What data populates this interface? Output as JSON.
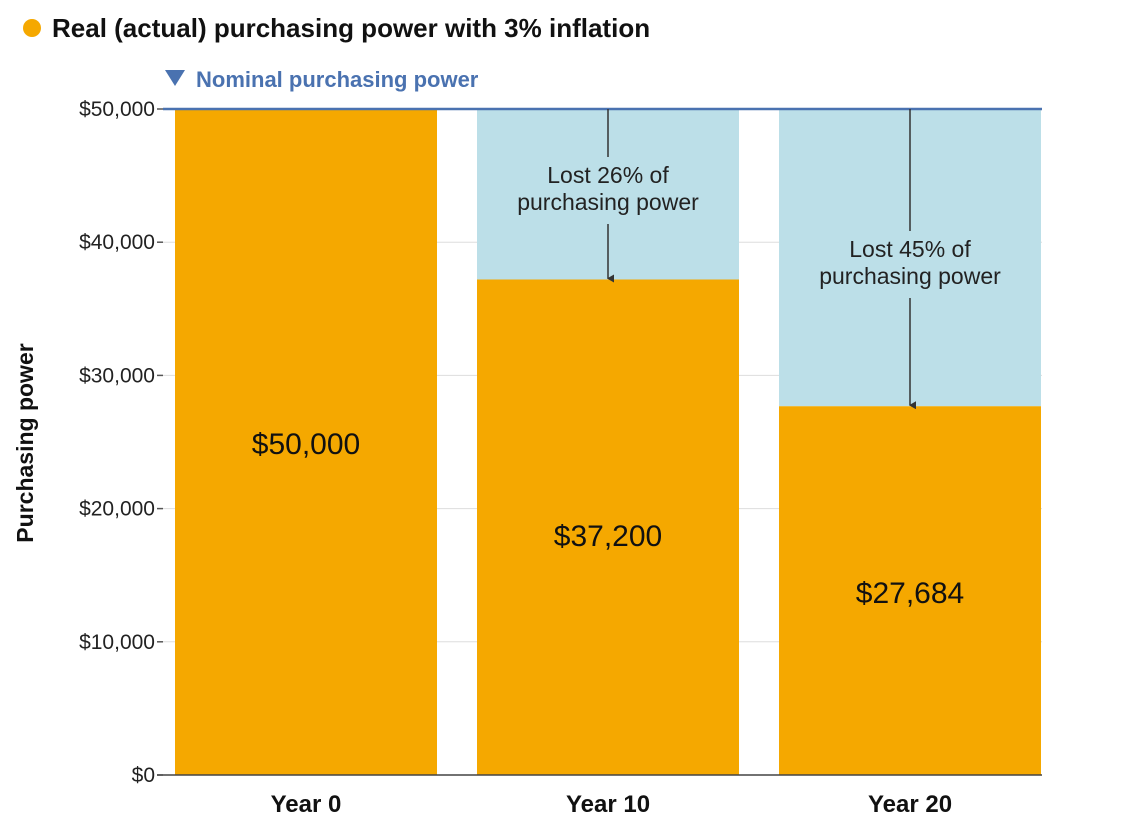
{
  "chart_data": {
    "type": "bar",
    "title": "",
    "legend": {
      "real_label": "Real (actual) purchasing power with 3% inflation",
      "nominal_label": "Nominal purchasing power",
      "real_color": "#F5A800",
      "nominal_color": "#4A72B0",
      "nominal_marker_icon": "down-triangle-icon",
      "real_marker_icon": "dot-icon"
    },
    "ylabel": "Purchasing power",
    "xlabel": "",
    "ylim": [
      0,
      50000
    ],
    "yticks": [
      0,
      10000,
      20000,
      30000,
      40000,
      50000
    ],
    "ytick_labels": [
      "$0",
      "$10,000",
      "$20,000",
      "$30,000",
      "$40,000",
      "$50,000"
    ],
    "grid": true,
    "categories": [
      "Year 0",
      "Year 10",
      "Year 20"
    ],
    "nominal_value": 50000,
    "series": [
      {
        "name": "Real (actual) purchasing power with 3% inflation",
        "values": [
          50000,
          37200,
          27684
        ],
        "labels": [
          "$50,000",
          "$37,200",
          "$27,684"
        ],
        "color": "#F5A800"
      }
    ],
    "loss_color": "#BCDFE8",
    "loss_annotations": [
      null,
      {
        "line1": "Lost 26% of",
        "line2": "purchasing power",
        "percent": 26
      },
      {
        "line1": "Lost 45% of",
        "line2": "purchasing power",
        "percent": 45
      }
    ]
  }
}
